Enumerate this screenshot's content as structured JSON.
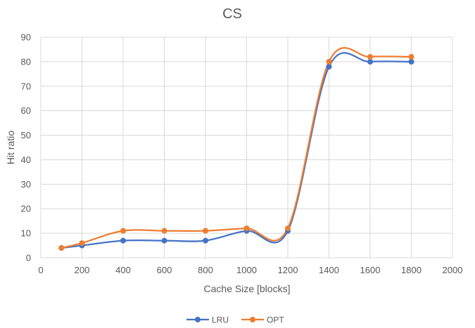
{
  "chart_data": {
    "type": "line",
    "title": "CS",
    "xlabel": "Cache Size [blocks]",
    "ylabel": "Hit ratio",
    "xlim": [
      0,
      2000
    ],
    "ylim": [
      0,
      90
    ],
    "xticks": [
      0,
      200,
      400,
      600,
      800,
      1000,
      1200,
      1400,
      1600,
      1800,
      2000
    ],
    "yticks": [
      0,
      10,
      20,
      30,
      40,
      50,
      60,
      70,
      80,
      90
    ],
    "grid": true,
    "smooth": true,
    "legend_position": "bottom",
    "x": [
      100,
      200,
      400,
      600,
      800,
      1000,
      1200,
      1400,
      1600,
      1800
    ],
    "series": [
      {
        "name": "LRU",
        "color": "#4472c4",
        "values": [
          4,
          5,
          7,
          7,
          7,
          11,
          11,
          78,
          80,
          80
        ]
      },
      {
        "name": "OPT",
        "color": "#ed7d31",
        "values": [
          4,
          6,
          11,
          11,
          11,
          12,
          12,
          80,
          82,
          82
        ]
      }
    ]
  }
}
